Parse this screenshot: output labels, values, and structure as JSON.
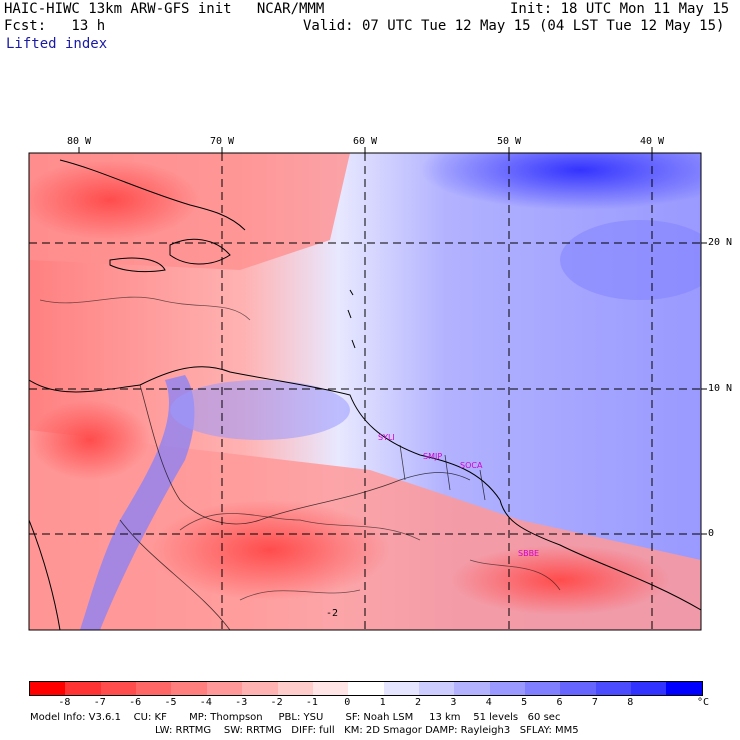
{
  "header": {
    "title": "HAIC-HIWC 13km ARW-GFS init   NCAR/MMM",
    "init": "Init: 18 UTC Mon 11 May 15",
    "fcst": "Fcst:   13 h",
    "valid": "Valid: 07 UTC Tue 12 May 15 (04 LST Tue 12 May 15)",
    "field": "Lifted index"
  },
  "axes": {
    "lon_labels": [
      "80 W",
      "70 W",
      "60 W",
      "50 W",
      "40 W"
    ],
    "lat_labels": [
      "20 N",
      "10 N",
      "0"
    ]
  },
  "cities": [
    "SYLI",
    "SMJP",
    "SOCA",
    "SBBE"
  ],
  "colorbar": {
    "labels": [
      "-8",
      "-7",
      "-6",
      "-5",
      "-4",
      "-3",
      "-2",
      "-1",
      "0",
      "1",
      "2",
      "3",
      "4",
      "5",
      "6",
      "7",
      "8"
    ],
    "unit": "°C",
    "colors": [
      "#ff0000",
      "#ff3333",
      "#ff4c4c",
      "#ff6666",
      "#ff7f7f",
      "#ff9999",
      "#ffb2b2",
      "#ffcccc",
      "#ffe5e5",
      "#ffffff",
      "#e5e5ff",
      "#ccccff",
      "#b2b2ff",
      "#9999ff",
      "#7f7fff",
      "#6666ff",
      "#4c4cff",
      "#3333ff",
      "#0000ff"
    ]
  },
  "footer": {
    "line1": "Model Info: V3.6.1    CU: KF       MP: Thompson     PBL: YSU       SF: Noah LSM     13 km    51 levels   60 sec",
    "line2": "LW: RRTMG    SW: RRTMG   DIFF: full   KM: 2D Smagor DAMP: Rayleigh3   SFLAY: MM5"
  },
  "contour_label": "-2"
}
